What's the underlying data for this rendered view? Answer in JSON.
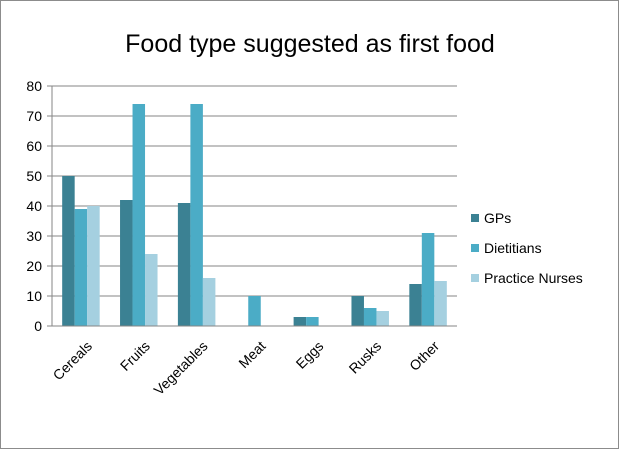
{
  "chart_data": {
    "type": "bar",
    "title": "Food type suggested as first food",
    "categories": [
      "Cereals",
      "Fruits",
      "Vegetables",
      "Meat",
      "Eggs",
      "Rusks",
      "Other"
    ],
    "series": [
      {
        "name": "GPs",
        "color": "#3b8193",
        "values": [
          50,
          42,
          41,
          0,
          3,
          10,
          14
        ]
      },
      {
        "name": "Dietitians",
        "color": "#4bacc6",
        "values": [
          39,
          74,
          74,
          10,
          3,
          6,
          31
        ]
      },
      {
        "name": "Practice Nurses",
        "color": "#a5d0e0",
        "values": [
          40,
          24,
          16,
          0,
          0,
          5,
          15
        ]
      }
    ],
    "ylim": [
      0,
      80
    ],
    "yticks": [
      0,
      10,
      20,
      30,
      40,
      50,
      60,
      70,
      80
    ],
    "grid": true,
    "legend_position": "right"
  }
}
